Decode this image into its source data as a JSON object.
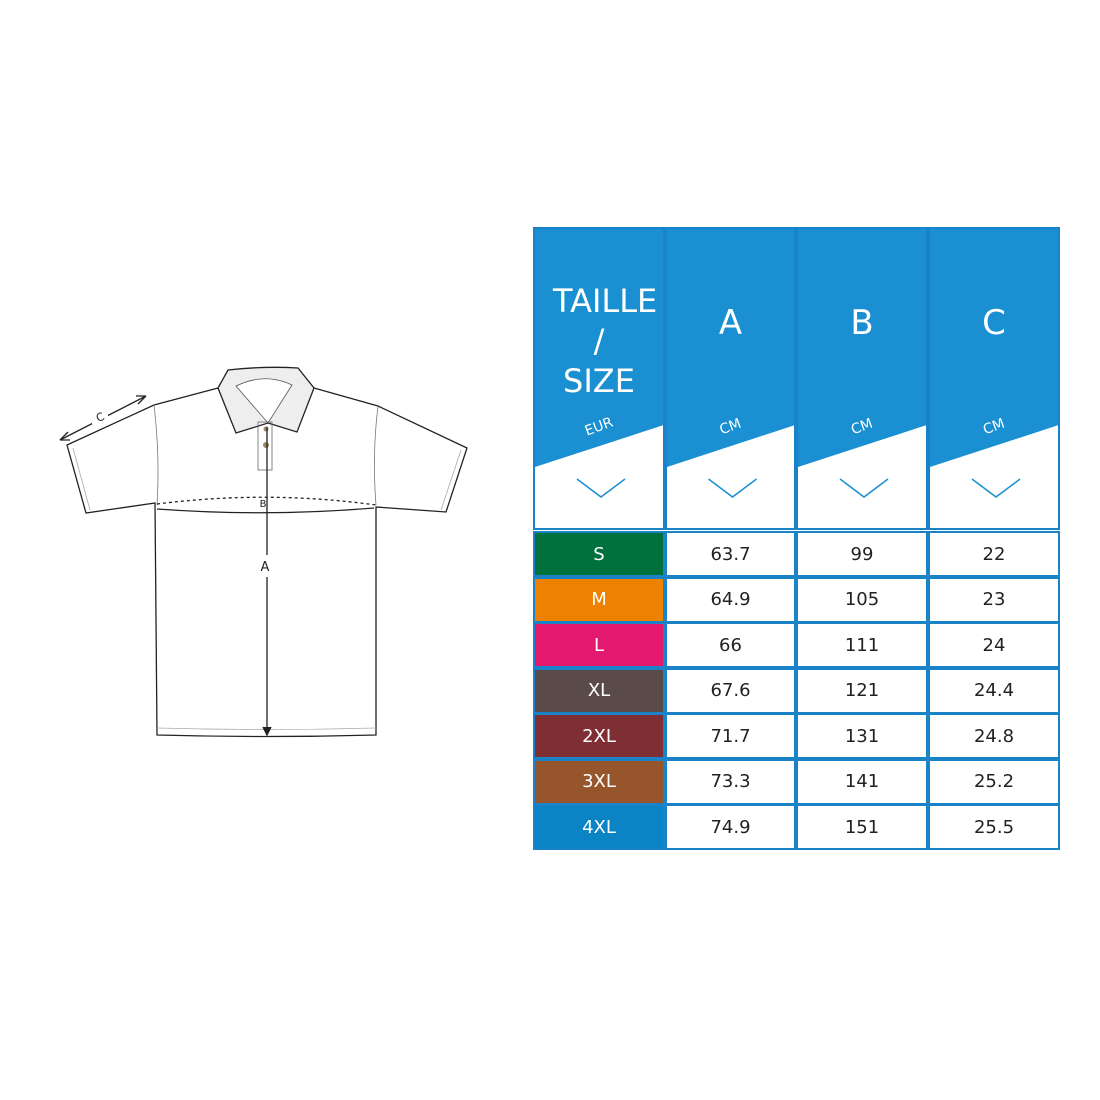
{
  "diagram": {
    "labels": {
      "a": "A",
      "b": "B",
      "c": "C"
    }
  },
  "table": {
    "header_color": "#1a8fd1",
    "columns": [
      {
        "title": "TAILLE / SIZE",
        "unit": "EUR"
      },
      {
        "title": "A",
        "unit": "CM"
      },
      {
        "title": "B",
        "unit": "CM"
      },
      {
        "title": "C",
        "unit": "CM"
      }
    ],
    "rows": [
      {
        "size": "S",
        "color": "#00703c",
        "a": "63.7",
        "b": "99",
        "c": "22"
      },
      {
        "size": "M",
        "color": "#ee8100",
        "a": "64.9",
        "b": "105",
        "c": "23"
      },
      {
        "size": "L",
        "color": "#e3186f",
        "a": "66",
        "b": "111",
        "c": "24"
      },
      {
        "size": "XL",
        "color": "#5a4b49",
        "a": "67.6",
        "b": "121",
        "c": "24.4"
      },
      {
        "size": "2XL",
        "color": "#7f2e33",
        "a": "71.7",
        "b": "131",
        "c": "24.8"
      },
      {
        "size": "3XL",
        "color": "#96552a",
        "a": "73.3",
        "b": "141",
        "c": "25.2"
      },
      {
        "size": "4XL",
        "color": "#0a84c4",
        "a": "74.9",
        "b": "151",
        "c": "25.5"
      }
    ]
  }
}
